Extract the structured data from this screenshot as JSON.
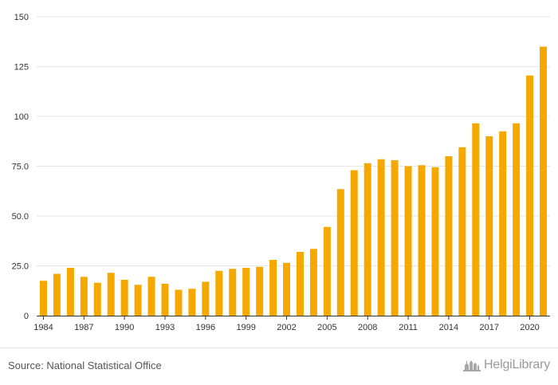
{
  "chart_data": {
    "type": "bar",
    "title": "",
    "xlabel": "",
    "ylabel": "",
    "ylim": [
      0,
      150
    ],
    "yticks": [
      {
        "value": 0,
        "label": "0"
      },
      {
        "value": 25,
        "label": "25.0"
      },
      {
        "value": 50,
        "label": "50.0"
      },
      {
        "value": 75,
        "label": "75.0"
      },
      {
        "value": 100,
        "label": "100"
      },
      {
        "value": 125,
        "label": "125"
      },
      {
        "value": 150,
        "label": "150"
      }
    ],
    "grid": true,
    "legend": "none",
    "bar_color": "#f5a900",
    "categories": [
      "1984",
      "1985",
      "1986",
      "1987",
      "1988",
      "1989",
      "1990",
      "1991",
      "1992",
      "1993",
      "1994",
      "1995",
      "1996",
      "1997",
      "1998",
      "1999",
      "2000",
      "2001",
      "2002",
      "2003",
      "2004",
      "2005",
      "2006",
      "2007",
      "2008",
      "2009",
      "2010",
      "2011",
      "2012",
      "2013",
      "2014",
      "2015",
      "2016",
      "2017",
      "2018",
      "2019",
      "2020",
      "2021"
    ],
    "values": [
      17.5,
      21,
      24,
      19.5,
      16.5,
      21.5,
      18,
      15.5,
      19.5,
      16,
      13,
      13.5,
      17,
      22.5,
      23.5,
      24,
      24.5,
      28,
      26.5,
      32,
      33.5,
      44.5,
      63.5,
      73,
      76.5,
      78.5,
      78,
      75,
      75.5,
      74.5,
      80,
      84.5,
      96.5,
      90,
      92.5,
      96.5,
      120.5,
      135
    ],
    "xtick_labels": [
      "1984",
      "1987",
      "1990",
      "1993",
      "1996",
      "1999",
      "2002",
      "2005",
      "2008",
      "2011",
      "2014",
      "2017",
      "2020"
    ]
  },
  "footer": {
    "source": "Source: National Statistical Office",
    "brand": "HelgiLibrary",
    "brand_icon": "helgi-logo-icon"
  }
}
